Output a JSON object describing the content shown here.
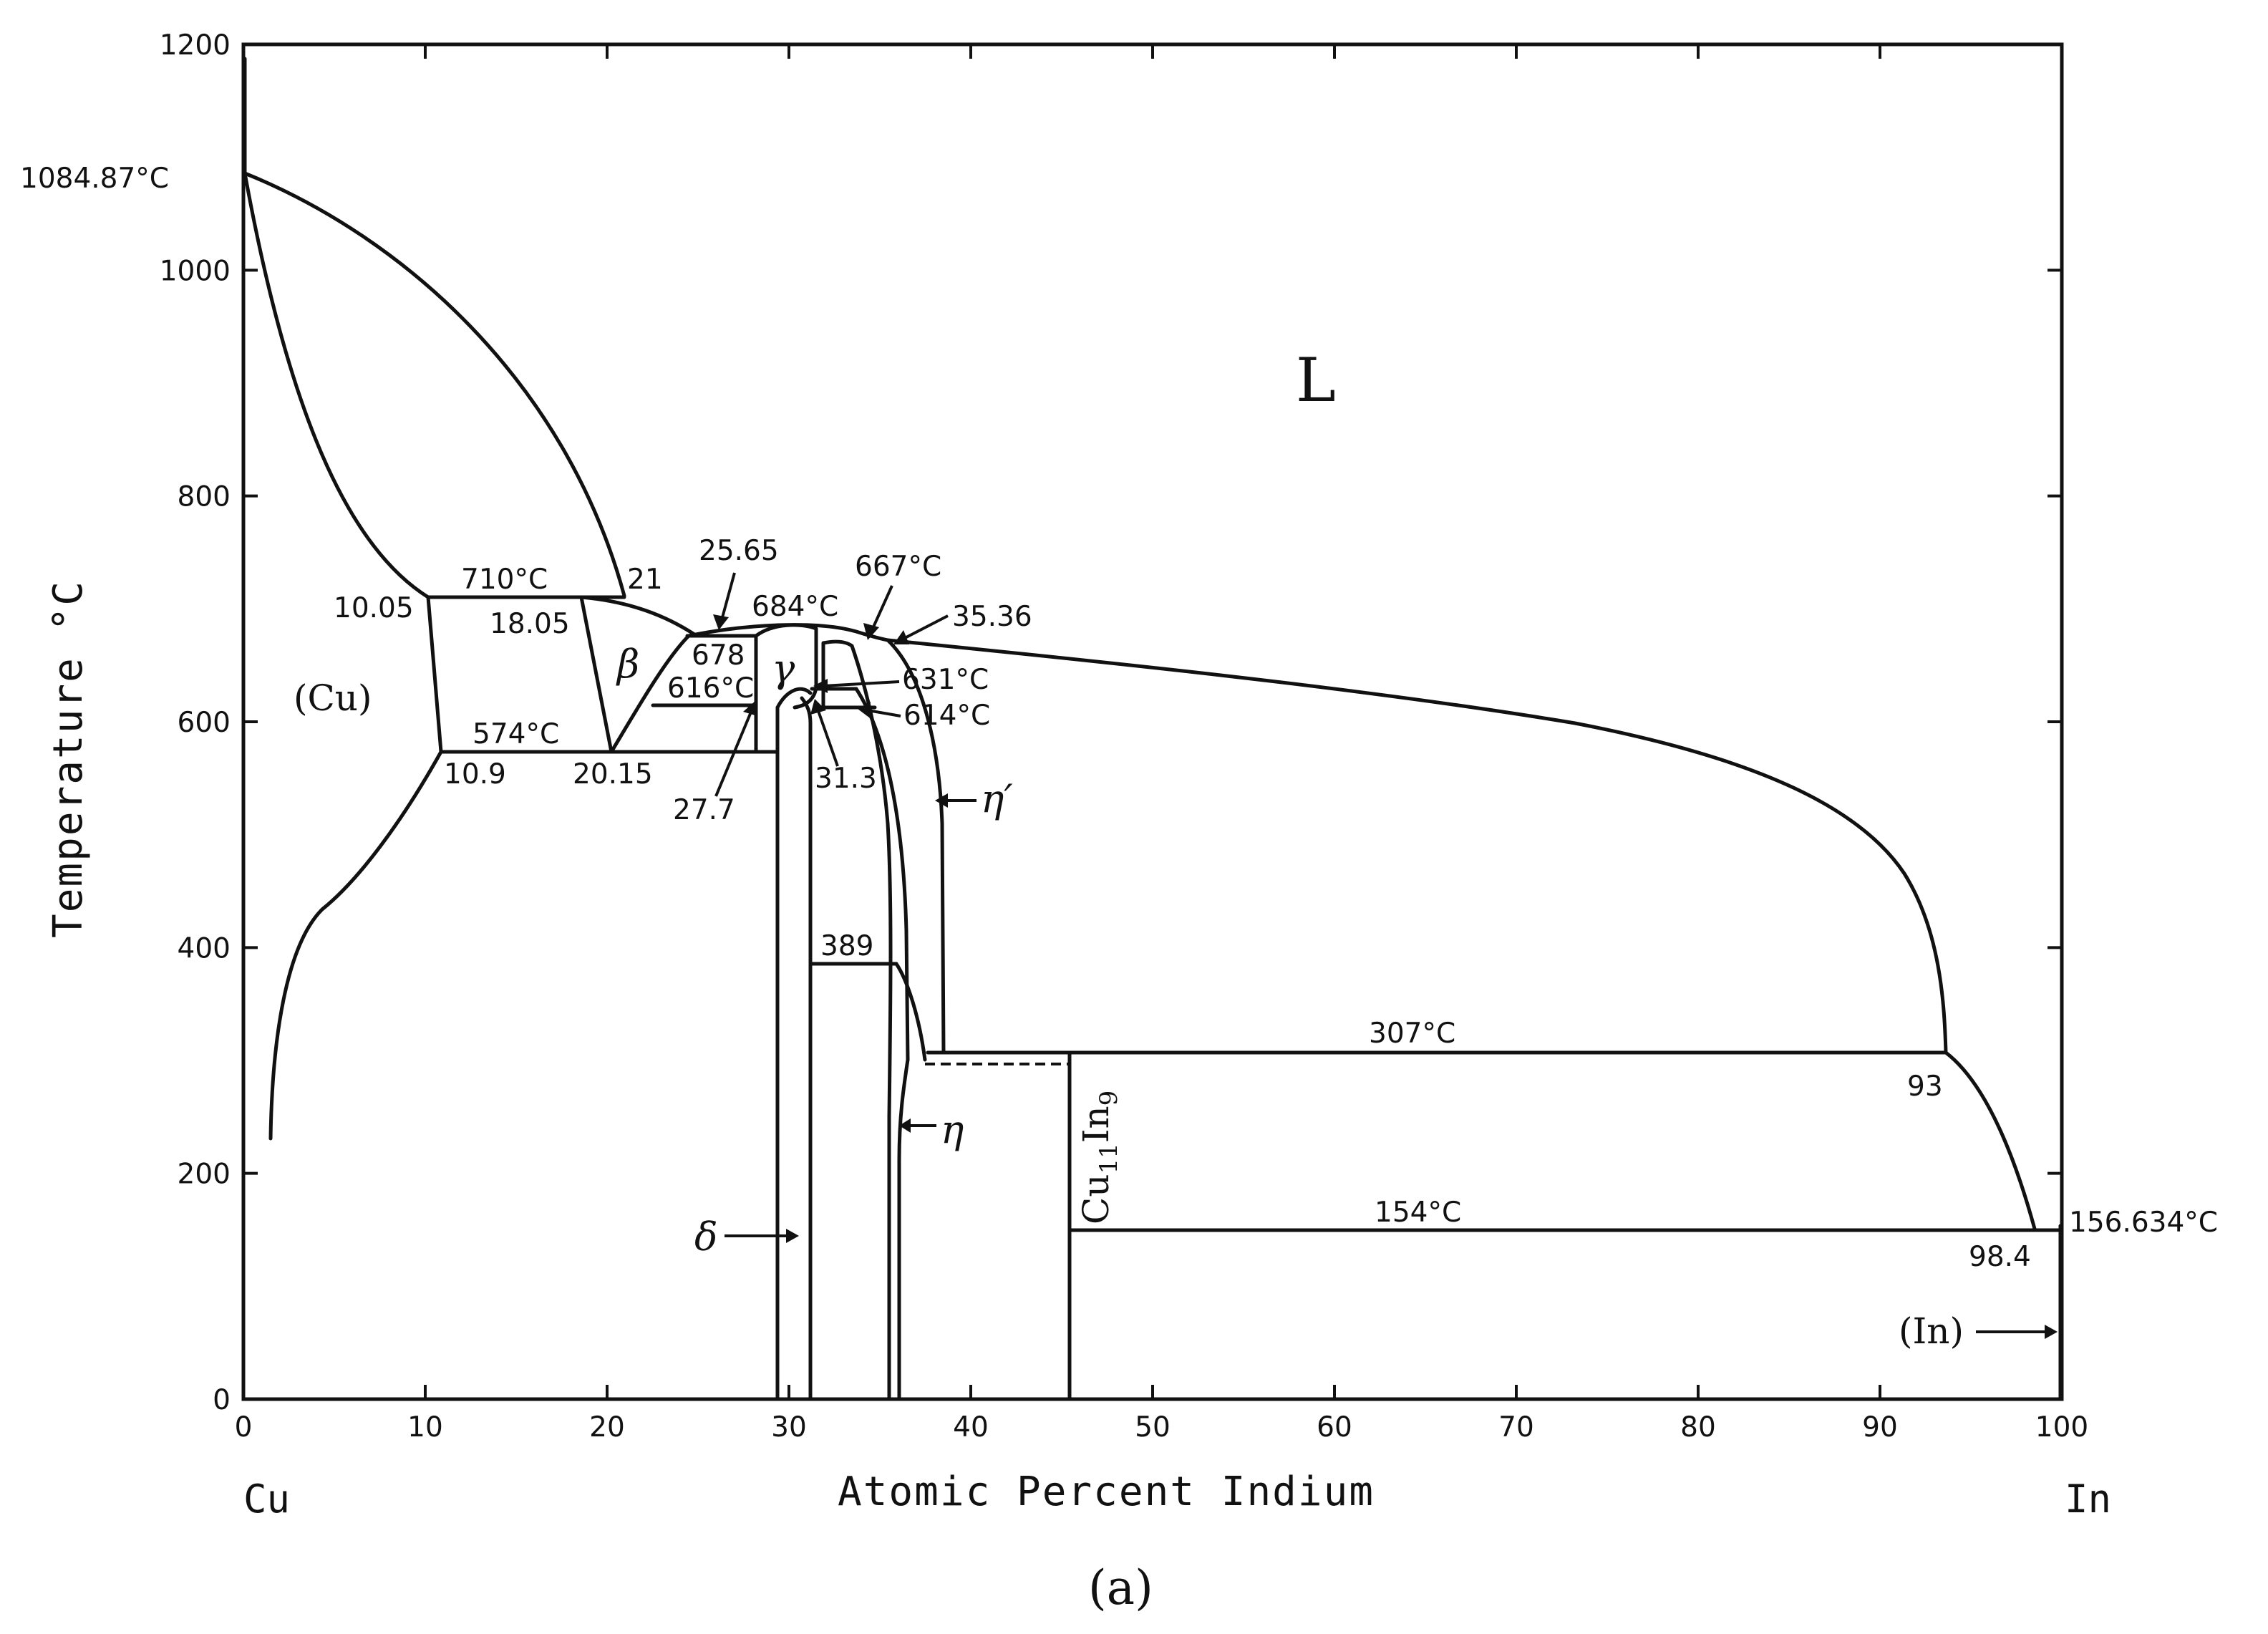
{
  "chart_data": {
    "type": "phase-diagram",
    "xlabel": "Atomic Percent Indium",
    "ylabel": "Temperature °C",
    "xlim": [
      0,
      100
    ],
    "ylim": [
      0,
      1200
    ],
    "x_ticks": [
      "0",
      "10",
      "20",
      "30",
      "40",
      "50",
      "60",
      "70",
      "80",
      "90",
      "100"
    ],
    "y_ticks": [
      "0",
      "200",
      "400",
      "600",
      "800",
      "1000",
      "1200"
    ],
    "left_element": "Cu",
    "right_element": "In",
    "caption": "(a)",
    "phase_labels": {
      "liquid": "L",
      "cu_solid": "(Cu)",
      "in_solid": "(In)",
      "beta": "β",
      "gamma": "γ",
      "delta": "δ",
      "eta": "η",
      "eta_prime": "η′",
      "compound": "Cu11In9"
    },
    "points": {
      "cu_melt": "1084.87°C",
      "in_melt": "156.634°C",
      "peritectic_710": "710°C",
      "c_10_05": "10.05",
      "c_21": "21",
      "c_18_05": "18.05",
      "eutectoid_574": "574°C",
      "c_10_9": "10.9",
      "c_20_15": "20.15",
      "c_25_65": "25.65",
      "t_684": "684°C",
      "t_667": "667°C",
      "c_35_36": "35.36",
      "t_678": "678",
      "t_616": "616°C",
      "t_631": "631°C",
      "t_614": "614°C",
      "c_27_7": "27.7",
      "c_31_3": "31.3",
      "t_389": "389",
      "t_307": "307°C",
      "c_93": "93",
      "t_154": "154°C",
      "c_98_4": "98.4"
    }
  }
}
